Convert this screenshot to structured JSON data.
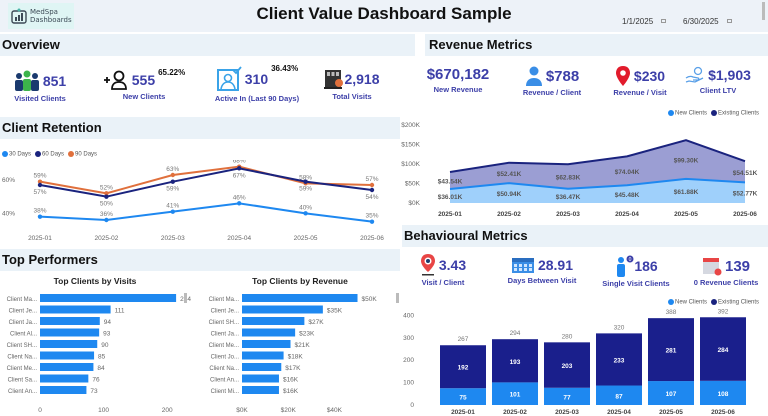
{
  "header": {
    "logo_line1": "MedSpa",
    "logo_line2": "Dashboards",
    "title": "Client Value Dashboard Sample",
    "date_start": "1/1/2025",
    "date_end": "6/30/2025"
  },
  "overview": {
    "title": "Overview",
    "kpis": [
      {
        "icon": "users-group-icon",
        "value": "851",
        "label": "Visited Clients"
      },
      {
        "icon": "add-user-icon",
        "value": "555",
        "label": "New Clients",
        "pct": "65.22%"
      },
      {
        "icon": "active-user-icon",
        "value": "310",
        "label": "Active In (Last 90 Days)",
        "pct": "36.43%"
      },
      {
        "icon": "building-icon",
        "value": "2,918",
        "label": "Total Visits"
      }
    ]
  },
  "revenue": {
    "title": "Revenue Metrics",
    "kpis": [
      {
        "icon": "",
        "value": "$670,182",
        "label": "New Revenue"
      },
      {
        "icon": "person-icon",
        "value": "$788",
        "label": "Revenue / Client"
      },
      {
        "icon": "location-pin-icon",
        "value": "$230",
        "label": "Revenue / Visit"
      },
      {
        "icon": "hand-coin-icon",
        "value": "$1,903",
        "label": "Client LTV"
      }
    ]
  },
  "retention": {
    "title": "Client Retention"
  },
  "performers": {
    "title": "Top Performers"
  },
  "behaviour": {
    "title": "Behavioural Metrics",
    "kpis": [
      {
        "icon": "visit-pin-icon",
        "value": "3.43",
        "label": "Visit / Client"
      },
      {
        "icon": "calendar-icon",
        "value": "28.91",
        "label": "Days Between Visit"
      },
      {
        "icon": "single-person-icon",
        "value": "186",
        "label": "Single Visit Clients"
      },
      {
        "icon": "calendar-zero-icon",
        "value": "139",
        "label": "0 Revenue Clients"
      }
    ]
  },
  "colors": {
    "light_blue": "#1e88f0",
    "dark_navy": "#1a237e",
    "orange": "#e0703c",
    "area_light": "#9fd0fb",
    "area_dark": "#9b9ed3",
    "kpi_text": "#3c3fa8"
  },
  "chart_data": [
    {
      "id": "retention",
      "type": "line",
      "title": "Client Retention",
      "categories": [
        "2025-01",
        "2025-02",
        "2025-03",
        "2025-04",
        "2025-05",
        "2025-06"
      ],
      "series": [
        {
          "name": "30 Days",
          "values": [
            38,
            36,
            41,
            46,
            40,
            35
          ],
          "labels": [
            "38%",
            "36%",
            "41%",
            "46%",
            "40%",
            "35%"
          ]
        },
        {
          "name": "60 Days",
          "values": [
            57,
            50,
            59,
            67,
            59,
            54
          ],
          "labels": [
            "57%",
            "50%",
            "59%",
            "67%",
            "59%",
            "54%"
          ]
        },
        {
          "name": "90 Days",
          "values": [
            59,
            52,
            63,
            68,
            58,
            57
          ],
          "labels": [
            "59%",
            "52%",
            "63%",
            "68%",
            "58%",
            "57%"
          ]
        }
      ],
      "yticks": [
        "40%",
        "60%"
      ],
      "ylim": [
        30,
        72
      ],
      "legend": "top-left"
    },
    {
      "id": "revenue",
      "type": "area",
      "categories": [
        "2025-01",
        "2025-02",
        "2025-03",
        "2025-04",
        "2025-05",
        "2025-06"
      ],
      "series": [
        {
          "name": "New Clients",
          "values": [
            36.01,
            50.94,
            36.47,
            45.48,
            61.88,
            52.77
          ],
          "labels": [
            "$36.01K",
            "$50.94K",
            "$36.47K",
            "$45.48K",
            "$61.88K",
            "$52.77K"
          ]
        },
        {
          "name": "Existing Clients",
          "values": [
            43.54,
            52.41,
            62.83,
            74.04,
            99.3,
            54.51
          ],
          "labels": [
            "$43.54K",
            "$52.41K",
            "$62.83K",
            "$74.04K",
            "$99.30K",
            "$54.51K"
          ]
        }
      ],
      "stacked": true,
      "yticks": [
        "$0K",
        "$50K",
        "$100K",
        "$150K",
        "$200K"
      ],
      "ylim": [
        0,
        200
      ],
      "legend": "top-right"
    },
    {
      "id": "visits",
      "type": "bar",
      "orientation": "horizontal",
      "title": "Top Clients by Visits",
      "categories": [
        "Client Ma...",
        "Client Je...",
        "Client Ja...",
        "Client Al...",
        "Client SH...",
        "Client Na...",
        "Client Me...",
        "Client Sa...",
        "Client An..."
      ],
      "values": [
        214,
        111,
        94,
        93,
        90,
        85,
        84,
        76,
        73
      ],
      "labels": [
        "214",
        "111",
        "94",
        "93",
        "90",
        "85",
        "84",
        "76",
        "73"
      ],
      "xticks": [
        "0",
        "100",
        "200"
      ],
      "xlim": [
        0,
        250
      ]
    },
    {
      "id": "revclients",
      "type": "bar",
      "orientation": "horizontal",
      "title": "Top Clients by Revenue",
      "categories": [
        "Client Ma...",
        "Client Je...",
        "Client SH...",
        "Client Ja...",
        "Client Me...",
        "Client Jo...",
        "Client Na...",
        "Client An...",
        "Client Mi..."
      ],
      "values": [
        50,
        35,
        27,
        23,
        21,
        18,
        17,
        16,
        16
      ],
      "labels": [
        "$50K",
        "$35K",
        "$27K",
        "$23K",
        "$21K",
        "$18K",
        "$17K",
        "$16K",
        "$16K"
      ],
      "xticks": [
        "$0K",
        "$20K",
        "$40K"
      ],
      "xlim": [
        0,
        58
      ]
    },
    {
      "id": "behaviour",
      "type": "bar",
      "stacked": true,
      "categories": [
        "2025-01",
        "2025-02",
        "2025-03",
        "2025-04",
        "2025-05",
        "2025-06"
      ],
      "series": [
        {
          "name": "New Clients",
          "values": [
            75,
            101,
            77,
            87,
            107,
            108
          ]
        },
        {
          "name": "Existing Clients",
          "values": [
            192,
            193,
            203,
            233,
            281,
            284
          ]
        }
      ],
      "totals": [
        267,
        294,
        280,
        320,
        388,
        392
      ],
      "yticks": [
        "0",
        "100",
        "200",
        "300",
        "400"
      ],
      "ylim": [
        0,
        420
      ],
      "legend": "top-right"
    }
  ]
}
